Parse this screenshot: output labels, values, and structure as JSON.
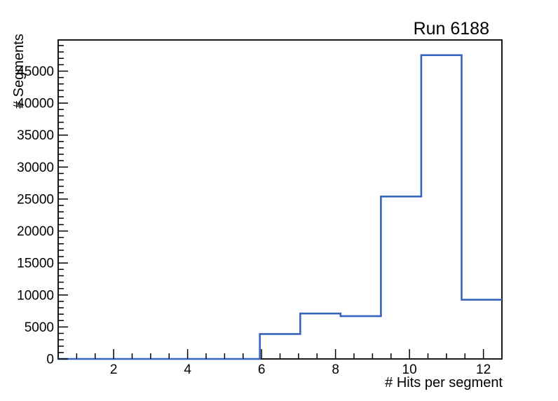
{
  "chart_data": {
    "type": "histogram",
    "title": "Run 6188",
    "xlabel": "# Hits per segment",
    "ylabel": "# Segments",
    "xlim": [
      0.5,
      12.5
    ],
    "ylim": [
      0,
      49875
    ],
    "grid": false,
    "legend": false,
    "bin_edges": [
      0.5,
      1.5909,
      2.6818,
      3.7727,
      4.8636,
      5.9545,
      7.0455,
      8.1364,
      9.2273,
      10.3182,
      11.4091,
      12.5
    ],
    "values": [
      0,
      0,
      0,
      0,
      0,
      3900,
      7100,
      6700,
      25400,
      47500,
      9250
    ],
    "x_major_ticks": [
      2,
      4,
      6,
      8,
      10,
      12
    ],
    "x_tick_labels": [
      "2",
      "4",
      "6",
      "8",
      "10",
      "12"
    ],
    "x_minor_step": 0.5,
    "y_major_ticks": [
      0,
      5000,
      10000,
      15000,
      20000,
      25000,
      30000,
      35000,
      40000,
      45000
    ],
    "y_tick_labels": [
      "0",
      "5000",
      "10000",
      "15000",
      "20000",
      "25000",
      "30000",
      "35000",
      "40000",
      "45000"
    ],
    "y_minor_step": 1000,
    "line_color": "#3764be",
    "axis_color": "#000000",
    "background_color": "#ffffff"
  }
}
